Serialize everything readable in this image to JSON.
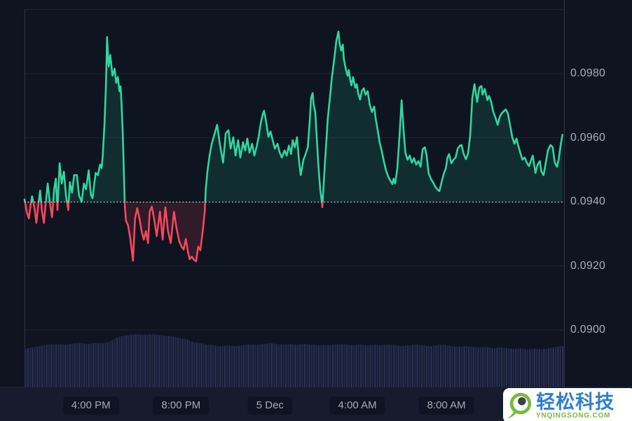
{
  "watermark": {
    "brand_cn": "轻松科技",
    "brand_domain": "YNQINGSONG.COM",
    "brand_blue": "#2b7fd2",
    "brand_green": "#79b93d"
  },
  "chart_data": {
    "type": "area",
    "subtype": "baseline-price-chart-with-volume",
    "title": "",
    "baseline_price": 0.094,
    "last_price": 0.0961,
    "high": 0.0993,
    "low": 0.0921,
    "y_axis": {
      "side": "right",
      "grid_prices": [
        0.1,
        0.098,
        0.096,
        0.094,
        0.092,
        0.09
      ],
      "ticks": [
        {
          "label": "0.0980",
          "price": 0.098
        },
        {
          "label": "0.0960",
          "price": 0.096
        },
        {
          "label": "0.0940",
          "price": 0.094
        },
        {
          "label": "0.0920",
          "price": 0.092
        },
        {
          "label": "0.0900",
          "price": 0.09
        }
      ]
    },
    "x_axis": {
      "ticks": [
        {
          "label": "4:00 PM",
          "f": 0.123
        },
        {
          "label": "8:00 PM",
          "f": 0.29
        },
        {
          "label": "5 Dec",
          "f": 0.455
        },
        {
          "label": "4:00 AM",
          "f": 0.617
        },
        {
          "label": "8:00 AM",
          "f": 0.782
        }
      ]
    },
    "colors": {
      "bg": "#0e1420",
      "up": "#2fd7a0",
      "up_fill": "rgba(47,215,160,0.13)",
      "down": "#f5475f",
      "down_fill": "rgba(246,70,93,0.15)",
      "volume_bar": "#242b49",
      "volume_bar_alt": "#2a3156",
      "grid": "rgba(160,170,190,0.10)",
      "axis": "rgba(160,170,190,0.22)",
      "baseline_dot": "#dfe3ec",
      "label": "#a9aeb9"
    },
    "price_points": [
      [
        0.0,
        0.09407
      ],
      [
        0.004,
        0.09369
      ],
      [
        0.008,
        0.09348
      ],
      [
        0.012,
        0.09396
      ],
      [
        0.014,
        0.09417
      ],
      [
        0.018,
        0.09385
      ],
      [
        0.022,
        0.09334
      ],
      [
        0.026,
        0.09396
      ],
      [
        0.029,
        0.09435
      ],
      [
        0.032,
        0.09374
      ],
      [
        0.036,
        0.09334
      ],
      [
        0.04,
        0.09407
      ],
      [
        0.043,
        0.09457
      ],
      [
        0.047,
        0.09396
      ],
      [
        0.051,
        0.09352
      ],
      [
        0.055,
        0.09439
      ],
      [
        0.058,
        0.09472
      ],
      [
        0.061,
        0.09374
      ],
      [
        0.065,
        0.0952
      ],
      [
        0.069,
        0.09457
      ],
      [
        0.073,
        0.09494
      ],
      [
        0.077,
        0.09417
      ],
      [
        0.081,
        0.09374
      ],
      [
        0.084,
        0.09461
      ],
      [
        0.088,
        0.09428
      ],
      [
        0.092,
        0.09483
      ],
      [
        0.097,
        0.09483
      ],
      [
        0.101,
        0.0942
      ],
      [
        0.106,
        0.094
      ],
      [
        0.11,
        0.09457
      ],
      [
        0.114,
        0.09439
      ],
      [
        0.119,
        0.09498
      ],
      [
        0.123,
        0.09422
      ],
      [
        0.126,
        0.09411
      ],
      [
        0.13,
        0.09466
      ],
      [
        0.132,
        0.0949
      ],
      [
        0.136,
        0.09483
      ],
      [
        0.14,
        0.09516
      ],
      [
        0.143,
        0.09505
      ],
      [
        0.145,
        0.09542
      ],
      [
        0.148,
        0.09636
      ],
      [
        0.151,
        0.09767
      ],
      [
        0.153,
        0.09914
      ],
      [
        0.156,
        0.09822
      ],
      [
        0.159,
        0.09858
      ],
      [
        0.163,
        0.09793
      ],
      [
        0.167,
        0.09815
      ],
      [
        0.17,
        0.09771
      ],
      [
        0.173,
        0.09789
      ],
      [
        0.176,
        0.09745
      ],
      [
        0.178,
        0.0976
      ],
      [
        0.18,
        0.097
      ],
      [
        0.182,
        0.0962
      ],
      [
        0.184,
        0.095
      ],
      [
        0.186,
        0.09385
      ],
      [
        0.188,
        0.09341
      ],
      [
        0.192,
        0.09326
      ],
      [
        0.196,
        0.09286
      ],
      [
        0.201,
        0.09216
      ],
      [
        0.205,
        0.09348
      ],
      [
        0.209,
        0.0938
      ],
      [
        0.213,
        0.09348
      ],
      [
        0.217,
        0.09308
      ],
      [
        0.221,
        0.09282
      ],
      [
        0.225,
        0.09308
      ],
      [
        0.229,
        0.09271
      ],
      [
        0.232,
        0.09369
      ],
      [
        0.236,
        0.09385
      ],
      [
        0.24,
        0.09348
      ],
      [
        0.245,
        0.09293
      ],
      [
        0.251,
        0.09369
      ],
      [
        0.256,
        0.09282
      ],
      [
        0.261,
        0.09383
      ],
      [
        0.266,
        0.09308
      ],
      [
        0.271,
        0.09271
      ],
      [
        0.277,
        0.09369
      ],
      [
        0.282,
        0.09315
      ],
      [
        0.287,
        0.09275
      ],
      [
        0.291,
        0.0926
      ],
      [
        0.295,
        0.09251
      ],
      [
        0.299,
        0.09284
      ],
      [
        0.303,
        0.09243
      ],
      [
        0.306,
        0.09221
      ],
      [
        0.31,
        0.09229
      ],
      [
        0.314,
        0.09219
      ],
      [
        0.318,
        0.09214
      ],
      [
        0.322,
        0.0926
      ],
      [
        0.326,
        0.09249
      ],
      [
        0.33,
        0.09304
      ],
      [
        0.334,
        0.09369
      ],
      [
        0.336,
        0.09439
      ],
      [
        0.339,
        0.09494
      ],
      [
        0.343,
        0.09544
      ],
      [
        0.347,
        0.09581
      ],
      [
        0.352,
        0.0961
      ],
      [
        0.357,
        0.0964
      ],
      [
        0.362,
        0.09581
      ],
      [
        0.368,
        0.09522
      ],
      [
        0.373,
        0.09614
      ],
      [
        0.378,
        0.09623
      ],
      [
        0.382,
        0.09566
      ],
      [
        0.387,
        0.09601
      ],
      [
        0.391,
        0.09544
      ],
      [
        0.396,
        0.09592
      ],
      [
        0.4,
        0.09538
      ],
      [
        0.405,
        0.09586
      ],
      [
        0.409,
        0.0956
      ],
      [
        0.413,
        0.09597
      ],
      [
        0.417,
        0.09553
      ],
      [
        0.422,
        0.09581
      ],
      [
        0.426,
        0.09544
      ],
      [
        0.43,
        0.0957
      ],
      [
        0.434,
        0.09603
      ],
      [
        0.438,
        0.09647
      ],
      [
        0.442,
        0.09675
      ],
      [
        0.444,
        0.09684
      ],
      [
        0.448,
        0.09647
      ],
      [
        0.452,
        0.09603
      ],
      [
        0.456,
        0.09619
      ],
      [
        0.46,
        0.09592
      ],
      [
        0.464,
        0.09566
      ],
      [
        0.469,
        0.09581
      ],
      [
        0.473,
        0.09553
      ],
      [
        0.477,
        0.09538
      ],
      [
        0.482,
        0.0956
      ],
      [
        0.486,
        0.09544
      ],
      [
        0.49,
        0.09575
      ],
      [
        0.494,
        0.09549
      ],
      [
        0.497,
        0.09592
      ],
      [
        0.501,
        0.0957
      ],
      [
        0.505,
        0.09601
      ],
      [
        0.509,
        0.09525
      ],
      [
        0.512,
        0.09483
      ],
      [
        0.517,
        0.09531
      ],
      [
        0.521,
        0.09549
      ],
      [
        0.525,
        0.0957
      ],
      [
        0.529,
        0.09658
      ],
      [
        0.531,
        0.09723
      ],
      [
        0.534,
        0.09739
      ],
      [
        0.536,
        0.09702
      ],
      [
        0.539,
        0.0968
      ],
      [
        0.542,
        0.09592
      ],
      [
        0.545,
        0.09505
      ],
      [
        0.548,
        0.09439
      ],
      [
        0.551,
        0.094
      ],
      [
        0.552,
        0.09383
      ],
      [
        0.555,
        0.09472
      ],
      [
        0.557,
        0.09527
      ],
      [
        0.56,
        0.09603
      ],
      [
        0.562,
        0.09658
      ],
      [
        0.566,
        0.09723
      ],
      [
        0.57,
        0.09793
      ],
      [
        0.574,
        0.09844
      ],
      [
        0.578,
        0.09903
      ],
      [
        0.582,
        0.09931
      ],
      [
        0.584,
        0.09894
      ],
      [
        0.587,
        0.09872
      ],
      [
        0.59,
        0.0989
      ],
      [
        0.592,
        0.09844
      ],
      [
        0.596,
        0.09811
      ],
      [
        0.599,
        0.09793
      ],
      [
        0.601,
        0.09811
      ],
      [
        0.604,
        0.09778
      ],
      [
        0.606,
        0.09763
      ],
      [
        0.609,
        0.09789
      ],
      [
        0.613,
        0.09756
      ],
      [
        0.616,
        0.09767
      ],
      [
        0.618,
        0.09741
      ],
      [
        0.622,
        0.09719
      ],
      [
        0.625,
        0.09745
      ],
      [
        0.629,
        0.09754
      ],
      [
        0.632,
        0.09734
      ],
      [
        0.636,
        0.09745
      ],
      [
        0.64,
        0.09702
      ],
      [
        0.644,
        0.0968
      ],
      [
        0.648,
        0.09697
      ],
      [
        0.651,
        0.09658
      ],
      [
        0.655,
        0.09619
      ],
      [
        0.658,
        0.09586
      ],
      [
        0.662,
        0.0956
      ],
      [
        0.666,
        0.09527
      ],
      [
        0.67,
        0.09498
      ],
      [
        0.674,
        0.09479
      ],
      [
        0.678,
        0.09466
      ],
      [
        0.682,
        0.09455
      ],
      [
        0.684,
        0.09472
      ],
      [
        0.687,
        0.09457
      ],
      [
        0.691,
        0.09505
      ],
      [
        0.695,
        0.09603
      ],
      [
        0.699,
        0.09717
      ],
      [
        0.703,
        0.09614
      ],
      [
        0.706,
        0.09553
      ],
      [
        0.71,
        0.09531
      ],
      [
        0.714,
        0.09544
      ],
      [
        0.718,
        0.09522
      ],
      [
        0.722,
        0.09536
      ],
      [
        0.726,
        0.09516
      ],
      [
        0.73,
        0.09527
      ],
      [
        0.734,
        0.09509
      ],
      [
        0.738,
        0.09564
      ],
      [
        0.742,
        0.0957
      ],
      [
        0.745,
        0.09549
      ],
      [
        0.749,
        0.0949
      ],
      [
        0.753,
        0.09472
      ],
      [
        0.757,
        0.09461
      ],
      [
        0.761,
        0.09448
      ],
      [
        0.765,
        0.09439
      ],
      [
        0.769,
        0.09433
      ],
      [
        0.773,
        0.09461
      ],
      [
        0.777,
        0.09487
      ],
      [
        0.781,
        0.09505
      ],
      [
        0.784,
        0.09538
      ],
      [
        0.787,
        0.09549
      ],
      [
        0.791,
        0.0952
      ],
      [
        0.795,
        0.09531
      ],
      [
        0.799,
        0.09538
      ],
      [
        0.803,
        0.09566
      ],
      [
        0.807,
        0.09575
      ],
      [
        0.81,
        0.09577
      ],
      [
        0.814,
        0.09549
      ],
      [
        0.818,
        0.09533
      ],
      [
        0.822,
        0.09549
      ],
      [
        0.826,
        0.09605
      ],
      [
        0.83,
        0.09723
      ],
      [
        0.834,
        0.09767
      ],
      [
        0.839,
        0.09712
      ],
      [
        0.843,
        0.09756
      ],
      [
        0.847,
        0.09761
      ],
      [
        0.849,
        0.09734
      ],
      [
        0.853,
        0.09752
      ],
      [
        0.858,
        0.09717
      ],
      [
        0.861,
        0.0973
      ],
      [
        0.865,
        0.09712
      ],
      [
        0.869,
        0.0968
      ],
      [
        0.873,
        0.09662
      ],
      [
        0.877,
        0.0964
      ],
      [
        0.881,
        0.09666
      ],
      [
        0.884,
        0.09675
      ],
      [
        0.888,
        0.09682
      ],
      [
        0.892,
        0.09688
      ],
      [
        0.896,
        0.09675
      ],
      [
        0.9,
        0.0964
      ],
      [
        0.904,
        0.09601
      ],
      [
        0.908,
        0.09581
      ],
      [
        0.912,
        0.09597
      ],
      [
        0.916,
        0.0957
      ],
      [
        0.919,
        0.09553
      ],
      [
        0.923,
        0.09531
      ],
      [
        0.927,
        0.09538
      ],
      [
        0.931,
        0.09522
      ],
      [
        0.935,
        0.09511
      ],
      [
        0.942,
        0.09544
      ],
      [
        0.947,
        0.0949
      ],
      [
        0.951,
        0.09516
      ],
      [
        0.955,
        0.09527
      ],
      [
        0.958,
        0.09494
      ],
      [
        0.962,
        0.09483
      ],
      [
        0.966,
        0.0952
      ],
      [
        0.97,
        0.0956
      ],
      [
        0.975,
        0.09577
      ],
      [
        0.979,
        0.0957
      ],
      [
        0.983,
        0.09522
      ],
      [
        0.987,
        0.09509
      ],
      [
        0.99,
        0.09531
      ],
      [
        0.994,
        0.0958
      ],
      [
        0.997,
        0.09609
      ]
    ],
    "volume_profile": [
      0.72,
      0.75,
      0.77,
      0.8,
      0.8,
      0.81,
      0.8,
      0.83,
      0.83,
      0.81,
      0.84,
      0.83,
      0.85,
      0.93,
      0.97,
      0.99,
      1.0,
      0.99,
      1.0,
      0.99,
      0.97,
      0.96,
      0.93,
      0.91,
      0.85,
      0.83,
      0.8,
      0.79,
      0.77,
      0.79,
      0.77,
      0.79,
      0.8,
      0.8,
      0.81,
      0.83,
      0.81,
      0.8,
      0.81,
      0.8,
      0.81,
      0.8,
      0.79,
      0.79,
      0.8,
      0.81,
      0.8,
      0.79,
      0.8,
      0.79,
      0.8,
      0.79,
      0.8,
      0.79,
      0.77,
      0.79,
      0.8,
      0.79,
      0.77,
      0.79,
      0.8,
      0.77,
      0.76,
      0.77,
      0.76,
      0.75,
      0.76,
      0.73,
      0.75,
      0.73,
      0.72,
      0.73,
      0.71,
      0.72,
      0.71,
      0.73,
      0.76,
      0.77
    ],
    "grid": true,
    "legend": false
  }
}
